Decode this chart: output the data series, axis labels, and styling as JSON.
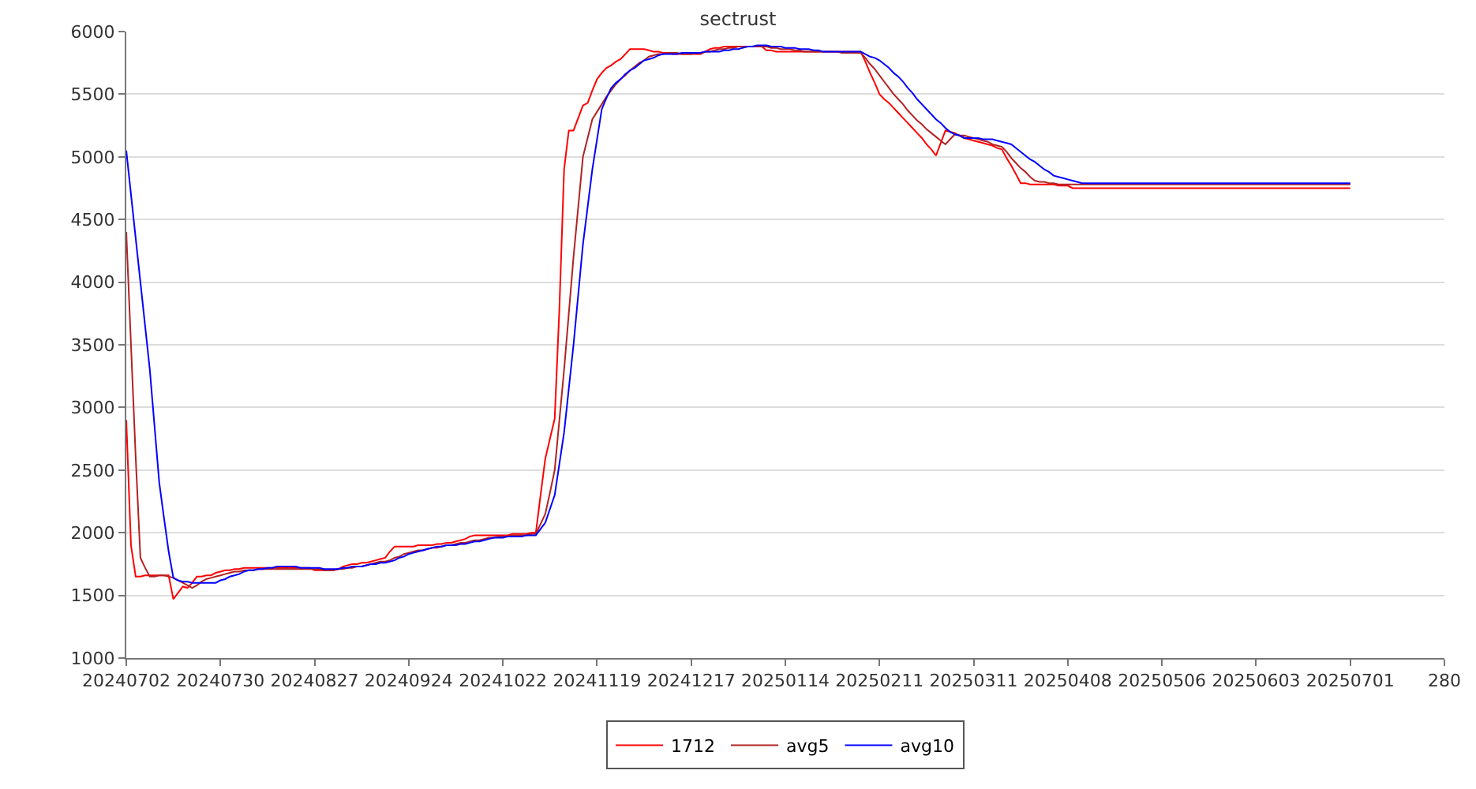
{
  "chart_data": {
    "type": "line",
    "title": "sectrust",
    "categories": [
      "20240702",
      null,
      null,
      null,
      null,
      null,
      null,
      null,
      null,
      null,
      null,
      null,
      null,
      null,
      null,
      null,
      null,
      null,
      null,
      null,
      "20240730",
      null,
      null,
      null,
      null,
      null,
      null,
      null,
      null,
      null,
      null,
      null,
      null,
      null,
      null,
      null,
      null,
      null,
      null,
      null,
      "20240827",
      null,
      null,
      null,
      null,
      null,
      null,
      null,
      null,
      null,
      null,
      null,
      null,
      null,
      null,
      null,
      null,
      null,
      null,
      null,
      "20240924",
      null,
      null,
      null,
      null,
      null,
      null,
      null,
      null,
      null,
      null,
      null,
      null,
      null,
      null,
      null,
      null,
      null,
      null,
      null,
      "20241022",
      null,
      null,
      null,
      null,
      null,
      null,
      null,
      null,
      null,
      null,
      null,
      null,
      null,
      null,
      null,
      null,
      null,
      null,
      null,
      "20241119",
      null,
      null,
      null,
      null,
      null,
      null,
      null,
      null,
      null,
      null,
      null,
      null,
      null,
      null,
      null,
      null,
      null,
      null,
      null,
      "20241217",
      null,
      null,
      null,
      null,
      null,
      null,
      null,
      null,
      null,
      null,
      null,
      null,
      null,
      null,
      null,
      null,
      null,
      null,
      null,
      "20250114",
      null,
      null,
      null,
      null,
      null,
      null,
      null,
      null,
      null,
      null,
      null,
      null,
      null,
      null,
      null,
      null,
      null,
      null,
      null,
      "20250211",
      null,
      null,
      null,
      null,
      null,
      null,
      null,
      null,
      null,
      null,
      null,
      null,
      null,
      null,
      null,
      null,
      null,
      null,
      null,
      "20250311",
      null,
      null,
      null,
      null,
      null,
      null,
      null,
      null,
      null,
      null,
      null,
      null,
      null,
      null,
      null,
      null,
      null,
      null,
      null,
      "20250408",
      null,
      null,
      null,
      null,
      null,
      null,
      null,
      null,
      null,
      null,
      null,
      null,
      null,
      null,
      null,
      null,
      null,
      null,
      null,
      "20250506",
      null,
      null,
      null,
      null,
      null,
      null,
      null,
      null,
      null,
      null,
      null,
      null,
      null,
      null,
      null,
      null,
      null,
      null,
      null,
      "20250603",
      null,
      null,
      null,
      null,
      null,
      null,
      null,
      null,
      null,
      null,
      null,
      null,
      null,
      null,
      null,
      null,
      null,
      null,
      null,
      "20250701",
      null,
      null,
      null,
      null,
      null,
      null,
      null,
      null,
      null,
      null,
      null,
      null,
      null,
      null,
      null,
      null,
      null,
      null,
      null,
      "280"
    ],
    "ylim": [
      1000,
      6000
    ],
    "yticks": [
      1000,
      1500,
      2000,
      2500,
      3000,
      3500,
      4000,
      4500,
      5000,
      5500,
      6000
    ],
    "grid": "y",
    "legend": "bottom",
    "marker": "none",
    "line_style": "solid",
    "series": [
      {
        "name": "1712",
        "color": "#ff0000",
        "values": [
          2900,
          1900,
          1650,
          1650,
          1660,
          1660,
          1660,
          1660,
          1660,
          1660,
          1470,
          1520,
          1570,
          1560,
          1600,
          1650,
          1650,
          1660,
          1660,
          1680,
          1690,
          1700,
          1700,
          1710,
          1710,
          1720,
          1720,
          1720,
          1720,
          1720,
          1720,
          1720,
          1720,
          1720,
          1720,
          1720,
          1720,
          1720,
          1720,
          1720,
          1700,
          1700,
          1700,
          1700,
          1700,
          1710,
          1730,
          1740,
          1750,
          1750,
          1760,
          1760,
          1770,
          1780,
          1790,
          1800,
          1850,
          1890,
          1890,
          1890,
          1890,
          1890,
          1900,
          1900,
          1900,
          1900,
          1910,
          1910,
          1920,
          1920,
          1930,
          1940,
          1950,
          1970,
          1980,
          1980,
          1980,
          1980,
          1980,
          1980,
          1980,
          1980,
          1990,
          1990,
          1990,
          1990,
          2000,
          2000,
          2300,
          2590,
          2750,
          2910,
          3790,
          4900,
          5210,
          5210,
          5310,
          5410,
          5430,
          5530,
          5620,
          5670,
          5710,
          5730,
          5760,
          5780,
          5820,
          5860,
          5860,
          5860,
          5860,
          5850,
          5840,
          5840,
          5830,
          5830,
          5820,
          5820,
          5820,
          5820,
          5820,
          5820,
          5820,
          5840,
          5860,
          5870,
          5870,
          5880,
          5880,
          5880,
          5880,
          5880,
          5880,
          5880,
          5880,
          5880,
          5850,
          5850,
          5840,
          5840,
          5840,
          5840,
          5840,
          5840,
          5840,
          5840,
          5840,
          5840,
          5840,
          5840,
          5840,
          5840,
          5840,
          5840,
          5840,
          5840,
          5840,
          5760,
          5670,
          5590,
          5500,
          5460,
          5430,
          5390,
          5350,
          5310,
          5270,
          5230,
          5190,
          5150,
          5100,
          5060,
          5010,
          5110,
          5210,
          5200,
          5190,
          5170,
          5150,
          5140,
          5130,
          5120,
          5110,
          5100,
          5090,
          5070,
          5060,
          4990,
          4930,
          4860,
          4790,
          4790,
          4780,
          4780,
          4780,
          4780,
          4780,
          4780,
          4770,
          4770,
          4770,
          4750,
          4750,
          4750,
          4750,
          4750,
          4750,
          4750,
          4750,
          4750,
          4750,
          4750,
          4750,
          4750,
          4750,
          4750,
          4750,
          4750,
          4750,
          4750,
          4750,
          4750,
          4750,
          4750,
          4750,
          4750,
          4750,
          4750,
          4750,
          4750,
          4750,
          4750,
          4750,
          4750,
          4750,
          4750,
          4750,
          4750,
          4750,
          4750,
          4750,
          4750,
          4750,
          4750,
          4750,
          4750,
          4750,
          4750,
          4750,
          4750,
          4750,
          4750,
          4750,
          4750,
          4750,
          4750,
          4750,
          4750,
          4750,
          4750,
          4750,
          null,
          null,
          null,
          null,
          null,
          null,
          null,
          null,
          null,
          null,
          null,
          null,
          null,
          null,
          null,
          null,
          null,
          null,
          null,
          null
        ]
      },
      {
        "name": "avg5",
        "color": "#b22222",
        "values": [
          4400,
          3500,
          2600,
          1800,
          1720,
          1650,
          1650,
          1660,
          1660,
          1650,
          1640,
          1620,
          1600,
          1580,
          1560,
          1580,
          1610,
          1630,
          1640,
          1650,
          1660,
          1670,
          1680,
          1690,
          1690,
          1700,
          1700,
          1700,
          1710,
          1710,
          1710,
          1710,
          1710,
          1710,
          1710,
          1710,
          1710,
          1710,
          1710,
          1710,
          1710,
          1710,
          1700,
          1700,
          1700,
          1710,
          1710,
          1720,
          1720,
          1730,
          1730,
          1740,
          1750,
          1760,
          1770,
          1770,
          1780,
          1800,
          1810,
          1830,
          1840,
          1850,
          1860,
          1860,
          1870,
          1880,
          1880,
          1890,
          1900,
          1900,
          1910,
          1920,
          1920,
          1930,
          1940,
          1940,
          1950,
          1960,
          1960,
          1970,
          1970,
          1970,
          1980,
          1980,
          1980,
          1980,
          1990,
          1990,
          2070,
          2150,
          2320,
          2500,
          2900,
          3300,
          3750,
          4200,
          4600,
          5000,
          5150,
          5300,
          5360,
          5420,
          5480,
          5530,
          5580,
          5620,
          5650,
          5690,
          5720,
          5750,
          5770,
          5800,
          5810,
          5820,
          5820,
          5830,
          5830,
          5830,
          5820,
          5820,
          5820,
          5830,
          5830,
          5840,
          5840,
          5850,
          5860,
          5860,
          5870,
          5870,
          5880,
          5880,
          5880,
          5880,
          5880,
          5880,
          5880,
          5870,
          5870,
          5860,
          5860,
          5860,
          5850,
          5850,
          5840,
          5840,
          5840,
          5840,
          5840,
          5840,
          5840,
          5840,
          5830,
          5830,
          5830,
          5830,
          5830,
          5790,
          5740,
          5700,
          5650,
          5600,
          5550,
          5500,
          5460,
          5420,
          5370,
          5330,
          5290,
          5260,
          5220,
          5190,
          5160,
          5130,
          5100,
          5140,
          5180,
          5170,
          5170,
          5160,
          5150,
          5140,
          5130,
          5120,
          5100,
          5090,
          5080,
          5040,
          4990,
          4950,
          4910,
          4880,
          4840,
          4810,
          4800,
          4800,
          4790,
          4790,
          4780,
          4780,
          4780,
          4780,
          4780,
          4780,
          4780,
          4780,
          4780,
          4780,
          4780,
          4780,
          4780,
          4780,
          4780,
          4780,
          4780,
          4780,
          4780,
          4780,
          4780,
          4780,
          4780,
          4780,
          4780,
          4780,
          4780,
          4780,
          4780,
          4780,
          4780,
          4780,
          4780,
          4780,
          4780,
          4780,
          4780,
          4780,
          4780,
          4780,
          4780,
          4780,
          4780,
          4780,
          4780,
          4780,
          4780,
          4780,
          4780,
          4780,
          4780,
          4780,
          4780,
          4780,
          4780,
          4780,
          4780,
          4780,
          4780,
          4780,
          4780,
          4780,
          4780,
          null,
          null,
          null,
          null,
          null,
          null,
          null,
          null,
          null,
          null,
          null,
          null,
          null,
          null,
          null,
          null,
          null,
          null,
          null,
          null
        ]
      },
      {
        "name": "avg10",
        "color": "#0000ff",
        "values": [
          5050,
          4700,
          4350,
          4000,
          3650,
          3300,
          2850,
          2400,
          2120,
          1850,
          1640,
          1620,
          1610,
          1610,
          1600,
          1600,
          1600,
          1600,
          1600,
          1600,
          1620,
          1630,
          1650,
          1660,
          1670,
          1690,
          1700,
          1700,
          1710,
          1710,
          1720,
          1720,
          1730,
          1730,
          1730,
          1730,
          1730,
          1720,
          1720,
          1720,
          1720,
          1720,
          1710,
          1710,
          1710,
          1710,
          1720,
          1720,
          1730,
          1730,
          1730,
          1740,
          1750,
          1750,
          1760,
          1760,
          1770,
          1780,
          1800,
          1810,
          1830,
          1840,
          1850,
          1860,
          1870,
          1880,
          1890,
          1890,
          1900,
          1900,
          1900,
          1910,
          1910,
          1920,
          1930,
          1930,
          1940,
          1950,
          1960,
          1960,
          1960,
          1970,
          1970,
          1970,
          1970,
          1980,
          1980,
          1980,
          2030,
          2080,
          2190,
          2300,
          2550,
          2800,
          3150,
          3500,
          3900,
          4300,
          4600,
          4900,
          5140,
          5380,
          5470,
          5550,
          5590,
          5620,
          5660,
          5690,
          5710,
          5740,
          5770,
          5780,
          5790,
          5810,
          5820,
          5820,
          5820,
          5820,
          5830,
          5830,
          5830,
          5830,
          5830,
          5840,
          5840,
          5840,
          5840,
          5850,
          5850,
          5860,
          5860,
          5870,
          5880,
          5880,
          5890,
          5890,
          5890,
          5880,
          5880,
          5880,
          5870,
          5870,
          5870,
          5860,
          5860,
          5860,
          5850,
          5850,
          5840,
          5840,
          5840,
          5840,
          5840,
          5840,
          5840,
          5840,
          5840,
          5820,
          5800,
          5790,
          5770,
          5740,
          5710,
          5670,
          5640,
          5600,
          5550,
          5510,
          5460,
          5420,
          5380,
          5340,
          5300,
          5270,
          5230,
          5200,
          5180,
          5170,
          5150,
          5150,
          5150,
          5150,
          5140,
          5140,
          5140,
          5130,
          5120,
          5110,
          5100,
          5070,
          5040,
          5010,
          4980,
          4960,
          4930,
          4900,
          4880,
          4850,
          4840,
          4830,
          4820,
          4810,
          4800,
          4790,
          4790,
          4790,
          4790,
          4790,
          4790,
          4790,
          4790,
          4790,
          4790,
          4790,
          4790,
          4790,
          4790,
          4790,
          4790,
          4790,
          4790,
          4790,
          4790,
          4790,
          4790,
          4790,
          4790,
          4790,
          4790,
          4790,
          4790,
          4790,
          4790,
          4790,
          4790,
          4790,
          4790,
          4790,
          4790,
          4790,
          4790,
          4790,
          4790,
          4790,
          4790,
          4790,
          4790,
          4790,
          4790,
          4790,
          4790,
          4790,
          4790,
          4790,
          4790,
          4790,
          4790,
          4790,
          4790,
          4790,
          4790,
          null,
          null,
          null,
          null,
          null,
          null,
          null,
          null,
          null,
          null,
          null,
          null,
          null,
          null,
          null,
          null,
          null,
          null,
          null,
          null
        ]
      }
    ]
  }
}
